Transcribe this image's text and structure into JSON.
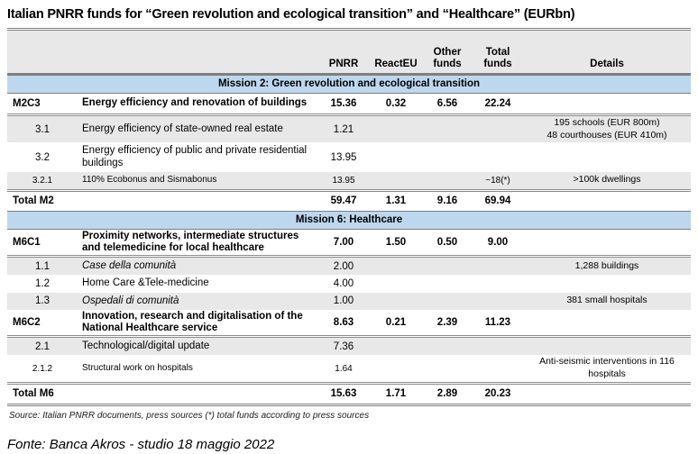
{
  "title": "Italian PNRR funds for “Green revolution and ecological transition” and “Healthcare” (EURbn)",
  "table": {
    "columns": {
      "pnrr": "PNRR",
      "reacteu": "ReactEU",
      "other": "Other funds",
      "total": "Total funds",
      "details": "Details"
    },
    "sections": [
      {
        "band": "Mission 2: Green revolution and ecological transition",
        "rows": [
          {
            "code": "M2C3",
            "desc": "Energy efficiency and renovation of buildings",
            "pnrr": "15.36",
            "reacteu": "0.32",
            "other": "6.56",
            "total": "22.24",
            "details": [],
            "type": "component",
            "shaded": false,
            "italic": false
          },
          {
            "code": "3.1",
            "desc": "Energy efficiency of state-owned real estate",
            "pnrr": "1.21",
            "reacteu": "",
            "other": "",
            "total": "",
            "details": [
              "195 schools (EUR 800m)",
              "48 courthouses (EUR 410m)"
            ],
            "type": "sub",
            "shaded": true,
            "italic": false
          },
          {
            "code": "3.2",
            "desc": "Energy efficiency of public and private residential buildings",
            "pnrr": "13.95",
            "reacteu": "",
            "other": "",
            "total": "",
            "details": [],
            "type": "sub",
            "shaded": false,
            "italic": false
          },
          {
            "code": "3.2.1",
            "desc": "110% Ecobonus and Sismabonus",
            "pnrr": "13.95",
            "reacteu": "",
            "other": "",
            "total": "~18(*)",
            "details": [
              ">100k dwellings"
            ],
            "type": "subsub",
            "shaded": true,
            "italic": false
          },
          {
            "code": "Total M2",
            "desc": "",
            "pnrr": "59.47",
            "reacteu": "1.31",
            "other": "9.16",
            "total": "69.94",
            "details": [],
            "type": "total",
            "shaded": false,
            "italic": false
          }
        ]
      },
      {
        "band": "Mission 6: Healthcare",
        "rows": [
          {
            "code": "M6C1",
            "desc": "Proximity networks, intermediate structures and telemedicine for local healthcare",
            "pnrr": "7.00",
            "reacteu": "1.50",
            "other": "0.50",
            "total": "9.00",
            "details": [],
            "type": "component",
            "shaded": false,
            "italic": false
          },
          {
            "code": "1.1",
            "desc": "Case della comunità",
            "pnrr": "2.00",
            "reacteu": "",
            "other": "",
            "total": "",
            "details": [
              "1,288 buildings"
            ],
            "type": "sub",
            "shaded": true,
            "italic": true
          },
          {
            "code": "1.2",
            "desc": "Home Care &Tele-medicine",
            "pnrr": "4.00",
            "reacteu": "",
            "other": "",
            "total": "",
            "details": [],
            "type": "sub",
            "shaded": false,
            "italic": false
          },
          {
            "code": "1.3",
            "desc": "Ospedali di comunità",
            "pnrr": "1.00",
            "reacteu": "",
            "other": "",
            "total": "",
            "details": [
              "381 small hospitals"
            ],
            "type": "sub",
            "shaded": true,
            "italic": true
          },
          {
            "code": "M6C2",
            "desc": "Innovation, research and digitalisation of the National Healthcare service",
            "pnrr": "8.63",
            "reacteu": "0.21",
            "other": "2.39",
            "total": "11.23",
            "details": [],
            "type": "component",
            "shaded": false,
            "italic": false
          },
          {
            "code": "2.1",
            "desc": "Technological/digital update",
            "pnrr": "7.36",
            "reacteu": "",
            "other": "",
            "total": "",
            "details": [],
            "type": "sub",
            "shaded": true,
            "italic": false
          },
          {
            "code": "2.1.2",
            "desc": "Structural work on hospitals",
            "pnrr": "1.64",
            "reacteu": "",
            "other": "",
            "total": "",
            "details": [
              "Anti-seismic interventions in 116 hospitals"
            ],
            "type": "subsub",
            "shaded": false,
            "italic": false
          },
          {
            "code": "Total M6",
            "desc": "",
            "pnrr": "15.63",
            "reacteu": "1.71",
            "other": "2.89",
            "total": "20.23",
            "details": [],
            "type": "total",
            "shaded": false,
            "italic": false
          }
        ]
      }
    ],
    "source_note": "Source: Italian PNRR documents, press sources (*) total funds according to press sources"
  },
  "footer": "Fonte: Banca Akros - studio 18 maggio 2022",
  "colors": {
    "mission_band_blue": "#BDD7EE",
    "shaded_row_gray": "#E9E8E8",
    "border_gray": "#7F7F7F",
    "border_light_gray": "#8C8C8C",
    "text": "#000000"
  }
}
